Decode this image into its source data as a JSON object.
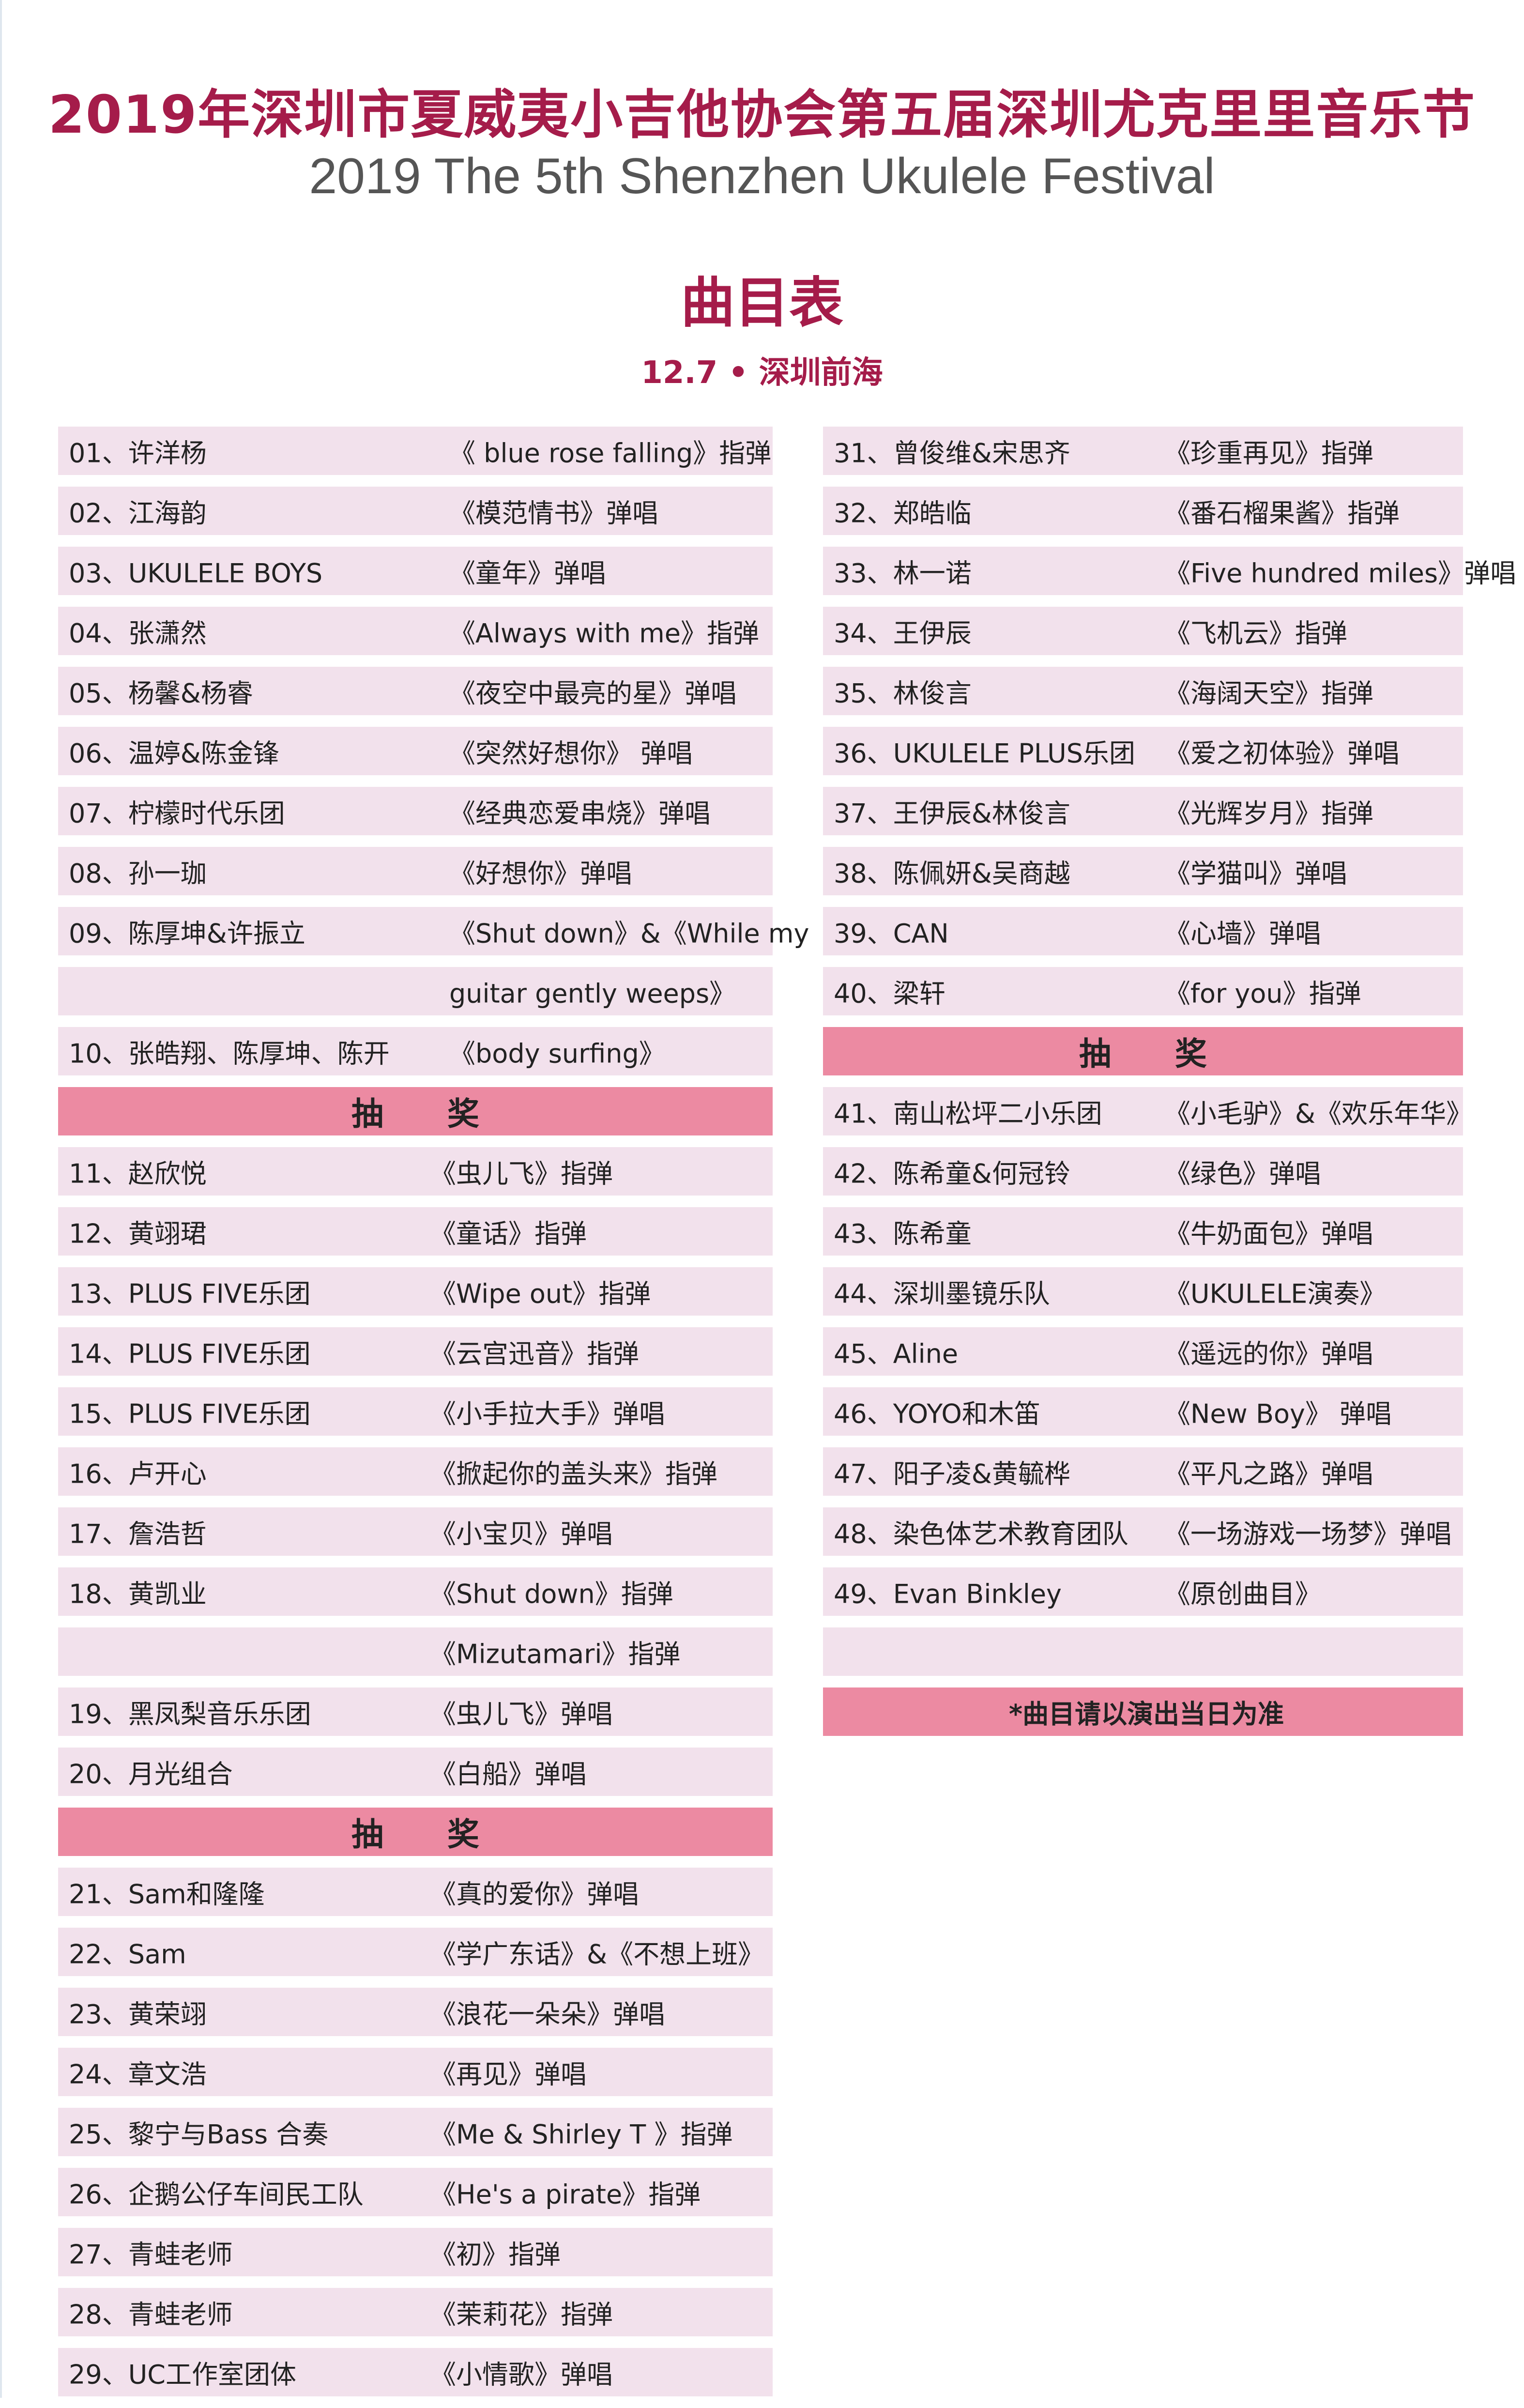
{
  "header": {
    "title_cn": "2019年深圳市夏威夷小吉他协会第五届深圳尤克里里音乐节",
    "title_en": "2019 The 5th Shenzhen Ukulele Festival",
    "heading": "曲目表",
    "date_venue": "12.7 • 深圳前海"
  },
  "colors": {
    "accent": "#a51c4a",
    "row_bg": "#f2e1ec",
    "band_bg": "#ec8aa2"
  },
  "left_column": [
    {
      "type": "row",
      "sec": "s1",
      "name": "01、许洋杨",
      "song": "《 blue rose falling》指弹"
    },
    {
      "type": "row",
      "sec": "s1",
      "name": "02、江海韵",
      "song": "《模范情书》弹唱"
    },
    {
      "type": "row",
      "sec": "s1",
      "name": "03、UKULELE BOYS",
      "song": "《童年》弹唱"
    },
    {
      "type": "row",
      "sec": "s1",
      "name": "04、张潇然",
      "song": "《Always with me》指弹"
    },
    {
      "type": "row",
      "sec": "s1",
      "name": "05、杨馨&杨睿",
      "song": "《夜空中最亮的星》弹唱"
    },
    {
      "type": "row",
      "sec": "s1",
      "name": "06、温婷&陈金锋",
      "song": "《突然好想你》 弹唱"
    },
    {
      "type": "row",
      "sec": "s1",
      "name": "07、柠檬时代乐团",
      "song": "《经典恋爱串烧》弹唱"
    },
    {
      "type": "row",
      "sec": "s1",
      "name": "08、孙一珈",
      "song": "《好想你》弹唱"
    },
    {
      "type": "row",
      "sec": "s1",
      "name": "09、陈厚坤&许振立",
      "song": "《Shut down》&《While my"
    },
    {
      "type": "row",
      "sec": "s1",
      "name": "",
      "song": "guitar gently  weeps》"
    },
    {
      "type": "row",
      "sec": "s1",
      "name": "10、张皓翔、陈厚坤、陈开",
      "song": "《body surfing》"
    },
    {
      "type": "band",
      "label": "抽　　奖"
    },
    {
      "type": "row",
      "sec": "s2",
      "name": "11、赵欣悦",
      "song": "《虫儿飞》指弹"
    },
    {
      "type": "row",
      "sec": "s2",
      "name": "12、黄翊珺",
      "song": "《童话》指弹"
    },
    {
      "type": "row",
      "sec": "s2",
      "name": "13、PLUS FIVE乐团",
      "song": "《Wipe out》指弹"
    },
    {
      "type": "row",
      "sec": "s2",
      "name": "14、PLUS FIVE乐团",
      "song": "《云宫迅音》指弹"
    },
    {
      "type": "row",
      "sec": "s2",
      "name": "15、PLUS FIVE乐团",
      "song": "《小手拉大手》弹唱"
    },
    {
      "type": "row",
      "sec": "s2",
      "name": "16、卢开心",
      "song": "《掀起你的盖头来》指弹"
    },
    {
      "type": "row",
      "sec": "s2",
      "name": "17、詹浩哲",
      "song": "《小宝贝》弹唱"
    },
    {
      "type": "row",
      "sec": "s2",
      "name": "18、黄凯业",
      "song": "《Shut down》指弹"
    },
    {
      "type": "row",
      "sec": "s2",
      "name": "",
      "song": "《Mizutamari》指弹"
    },
    {
      "type": "row",
      "sec": "s2",
      "name": "19、黑凤梨音乐乐团",
      "song": "《虫儿飞》弹唱"
    },
    {
      "type": "row",
      "sec": "s2",
      "name": "20、月光组合",
      "song": "《白船》弹唱"
    },
    {
      "type": "band",
      "label": "抽　　奖"
    },
    {
      "type": "row",
      "sec": "s2",
      "name": "21、Sam和隆隆",
      "song": "《真的爱你》弹唱"
    },
    {
      "type": "row",
      "sec": "s2",
      "name": "22、Sam",
      "song": "《学广东话》&《不想上班》"
    },
    {
      "type": "row",
      "sec": "s2",
      "name": "23、黄荣翊",
      "song": "《浪花一朵朵》弹唱"
    },
    {
      "type": "row",
      "sec": "s2",
      "name": "24、章文浩",
      "song": "《再见》弹唱"
    },
    {
      "type": "row",
      "sec": "s2",
      "name": "25、黎宁与Bass 合奏",
      "song": "《Me & Shirley T 》指弹"
    },
    {
      "type": "row",
      "sec": "s2",
      "name": "26、企鹅公仔车间民工队",
      "song": "《He's a pirate》指弹"
    },
    {
      "type": "row",
      "sec": "s2",
      "name": "27、青蛙老师",
      "song": "《初》指弹"
    },
    {
      "type": "row",
      "sec": "s2",
      "name": "28、青蛙老师",
      "song": "《茉莉花》指弹"
    },
    {
      "type": "row",
      "sec": "s2",
      "name": "29、UC工作室团体",
      "song": "《小情歌》弹唱"
    }
  ],
  "right_column": [
    {
      "type": "row",
      "name": "31、曾俊维&宋思齐",
      "song": "《珍重再见》指弹"
    },
    {
      "type": "row",
      "name": "32、郑皓临",
      "song": "《番石榴果酱》指弹"
    },
    {
      "type": "row",
      "name": "33、林一诺",
      "song": "《Five hundred miles》弹唱"
    },
    {
      "type": "row",
      "name": "34、王伊辰",
      "song": "《飞机云》指弹"
    },
    {
      "type": "row",
      "name": "35、林俊言",
      "song": "《海阔天空》指弹"
    },
    {
      "type": "row",
      "name": "36、UKULELE PLUS乐团",
      "song": "《爱之初体验》弹唱"
    },
    {
      "type": "row",
      "name": "37、王伊辰&林俊言",
      "song": "《光辉岁月》指弹"
    },
    {
      "type": "row",
      "name": "38、陈佩妍&吴商越",
      "song": "《学猫叫》弹唱"
    },
    {
      "type": "row",
      "name": "39、CAN",
      "song": "《心墙》弹唱"
    },
    {
      "type": "row",
      "name": "40、梁轩",
      "song": "《for you》指弹"
    },
    {
      "type": "band",
      "label": "抽　　奖"
    },
    {
      "type": "row",
      "name": "41、南山松坪二小乐团",
      "song": "《小毛驴》&《欢乐年华》"
    },
    {
      "type": "row",
      "name": "42、陈希童&何冠铃",
      "song": "《绿色》弹唱"
    },
    {
      "type": "row",
      "name": "43、陈希童",
      "song": "《牛奶面包》弹唱"
    },
    {
      "type": "row",
      "name": "44、深圳墨镜乐队",
      "song": "《UKULELE演奏》"
    },
    {
      "type": "row",
      "name": "45、Aline",
      "song": "《遥远的你》弹唱"
    },
    {
      "type": "row",
      "name": "46、YOYO和木笛",
      "song": "《New Boy》 弹唱"
    },
    {
      "type": "row",
      "name": "47、阳子凌&黄毓桦",
      "song": "《平凡之路》弹唱"
    },
    {
      "type": "row",
      "name": "48、染色体艺术教育团队",
      "song": "《一场游戏一场梦》弹唱"
    },
    {
      "type": "row",
      "name": "49、Evan Binkley",
      "song": "《原创曲目》"
    },
    {
      "type": "row",
      "name": "",
      "song": ""
    },
    {
      "type": "note",
      "label": "*曲目请以演出当日为准"
    }
  ]
}
